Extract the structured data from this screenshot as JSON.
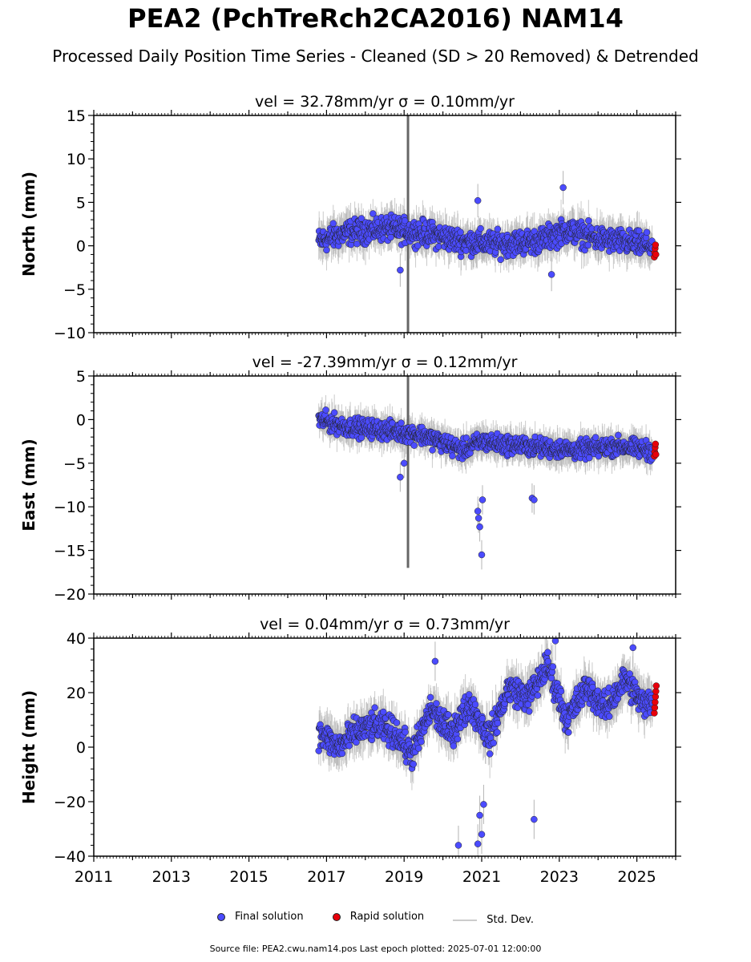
{
  "figure": {
    "title": "PEA2 (PchTreRch2CA2016) NAM14",
    "subtitle": "Processed Daily Position Time Series - Cleaned (SD > 20 Removed) & Detrended"
  },
  "legend": {
    "final": "Final solution",
    "rapid": "Rapid solution",
    "std": "Std. Dev."
  },
  "source_note": "Source file: PEA2.cwu.nam14.pos  Last epoch plotted: 2025-07-01 12:00:00",
  "colors": {
    "final": "#4b4bff",
    "rapid": "#e8000b",
    "std": "#b4b4b4",
    "grid": "#000000"
  },
  "chart_data": [
    {
      "type": "scatter",
      "panel": "north",
      "title": "vel = 32.78mm/yr   σ = 0.10mm/yr",
      "ylabel": "North (mm)",
      "xlim": [
        2011,
        2026
      ],
      "ylim": [
        -10,
        15
      ],
      "yticks": [
        -10,
        -5,
        0,
        5,
        10,
        15
      ],
      "ytick_labels": [
        "−10",
        "−5",
        "0",
        "5",
        "10",
        "15"
      ],
      "final_trend": {
        "x": [
          2016.8,
          2017.5,
          2018.5,
          2019.5,
          2020.5,
          2021.5,
          2022.5,
          2023.2,
          2024.0,
          2025.4
        ],
        "y": [
          0.5,
          1.5,
          2.0,
          1.5,
          0.5,
          0.2,
          0.6,
          1.8,
          0.8,
          0.0
        ]
      },
      "noise_amplitude": 1.2,
      "std_amplitude": 1.6,
      "final_outliers": {
        "x": [
          2018.9,
          2020.9,
          2023.1,
          2022.8
        ],
        "y": [
          -2.8,
          5.2,
          6.7,
          -3.3
        ]
      },
      "rapid": {
        "x": [
          2025.45,
          2025.46,
          2025.47,
          2025.48,
          2025.49
        ],
        "y": [
          -1.3,
          -0.8,
          -0.3,
          0.1,
          -1.0
        ]
      },
      "spike": {
        "x": 2019.1,
        "y_low": -10,
        "y_high": 15
      }
    },
    {
      "type": "scatter",
      "panel": "east",
      "title": "vel = -27.39mm/yr   σ = 0.12mm/yr",
      "ylabel": "East (mm)",
      "xlim": [
        2011,
        2026
      ],
      "ylim": [
        -20,
        5
      ],
      "yticks": [
        -20,
        -15,
        -10,
        -5,
        0,
        5
      ],
      "ytick_labels": [
        "−20",
        "−15",
        "−10",
        "−5",
        "0",
        "5"
      ],
      "final_trend": {
        "x": [
          2016.8,
          2017.5,
          2018.5,
          2019.5,
          2020.5,
          2021.0,
          2021.5,
          2022.5,
          2023.5,
          2024.5,
          2025.4
        ],
        "y": [
          0.0,
          -0.8,
          -1.2,
          -1.8,
          -3.5,
          -2.5,
          -2.8,
          -3.2,
          -3.5,
          -3.0,
          -3.6
        ]
      },
      "noise_amplitude": 0.9,
      "std_amplitude": 1.4,
      "final_outliers": {
        "x": [
          2018.9,
          2019.0,
          2020.9,
          2020.95,
          2021.0,
          2021.02,
          2020.92,
          2022.3,
          2022.35
        ],
        "y": [
          -6.6,
          -5.0,
          -10.5,
          -12.3,
          -15.5,
          -9.2,
          -11.3,
          -9.0,
          -9.2
        ]
      },
      "rapid": {
        "x": [
          2025.45,
          2025.46,
          2025.47,
          2025.48,
          2025.49
        ],
        "y": [
          -4.2,
          -3.7,
          -3.2,
          -2.8,
          -4.0
        ]
      },
      "spike": {
        "x": 2019.1,
        "y_low": -17,
        "y_high": 5
      }
    },
    {
      "type": "scatter",
      "panel": "height",
      "title": "vel = 0.04mm/yr   σ = 0.73mm/yr",
      "ylabel": "Height (mm)",
      "xlim": [
        2011,
        2026
      ],
      "ylim": [
        -40,
        40
      ],
      "yticks": [
        -40,
        -20,
        0,
        20,
        40
      ],
      "ytick_labels": [
        "−40",
        "−20",
        "0",
        "20",
        "40"
      ],
      "final_trend": {
        "x": [
          2016.8,
          2017.3,
          2017.8,
          2018.3,
          2018.8,
          2019.2,
          2019.7,
          2020.2,
          2020.7,
          2021.2,
          2021.7,
          2022.2,
          2022.7,
          2023.2,
          2023.7,
          2024.2,
          2024.7,
          2025.2,
          2025.4
        ],
        "y": [
          5,
          0,
          6,
          8,
          5,
          -3,
          14,
          5,
          16,
          3,
          22,
          18,
          30,
          10,
          22,
          14,
          25,
          15,
          18
        ]
      },
      "noise_amplitude": 4.5,
      "std_amplitude": 6,
      "final_outliers": {
        "x": [
          2020.4,
          2020.9,
          2020.95,
          2021.0,
          2021.05,
          2022.35,
          2019.8,
          2024.9,
          2022.9
        ],
        "y": [
          -36,
          -35.5,
          -25,
          -32,
          -21,
          -26.5,
          31.5,
          36.5,
          39
        ]
      },
      "rapid": {
        "x": [
          2025.45,
          2025.46,
          2025.47,
          2025.48,
          2025.49,
          2025.5
        ],
        "y": [
          12.5,
          14.5,
          16.5,
          18.5,
          20.5,
          22.5
        ]
      },
      "spike": null
    }
  ],
  "x_axis": {
    "ticks": [
      2011,
      2013,
      2015,
      2017,
      2019,
      2021,
      2023,
      2025
    ],
    "tick_labels": [
      "2011",
      "2013",
      "2015",
      "2017",
      "2019",
      "2021",
      "2023",
      "2025"
    ]
  }
}
